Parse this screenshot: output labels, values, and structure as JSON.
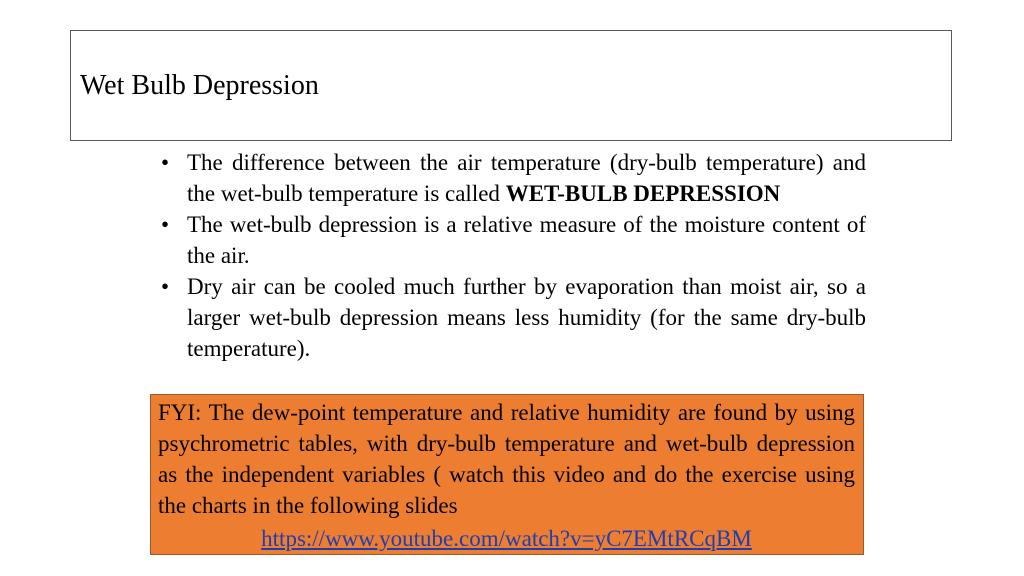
{
  "title": "Wet Bulb Depression",
  "bullets": [
    {
      "text_before": "The difference between the air temperature (dry-bulb temperature) and the wet-bulb temperature is called ",
      "bold": "WET-BULB DEPRESSION"
    },
    {
      "text_before": "The wet-bulb depression is a relative measure of the moisture content of the air.",
      "bold": ""
    },
    {
      "text_before": "Dry air can be cooled much further by evaporation than moist air, so a larger wet-bulb depression means less humidity (for the same dry-bulb temperature).",
      "bold": ""
    }
  ],
  "bullet_glyph": "•",
  "fyi": {
    "text": "FYI: The dew-point temperature and relative humidity are found by using psychrometric tables, with dry-bulb temperature and wet-bulb depression as the independent variables ( watch this video and do the exercise using the charts in the following slides",
    "link_text": "https://www.youtube.com/watch?v=yC7EMtRCqBM"
  },
  "colors": {
    "fyi_background": "#ed7d31",
    "link": "#1f3fb0"
  }
}
